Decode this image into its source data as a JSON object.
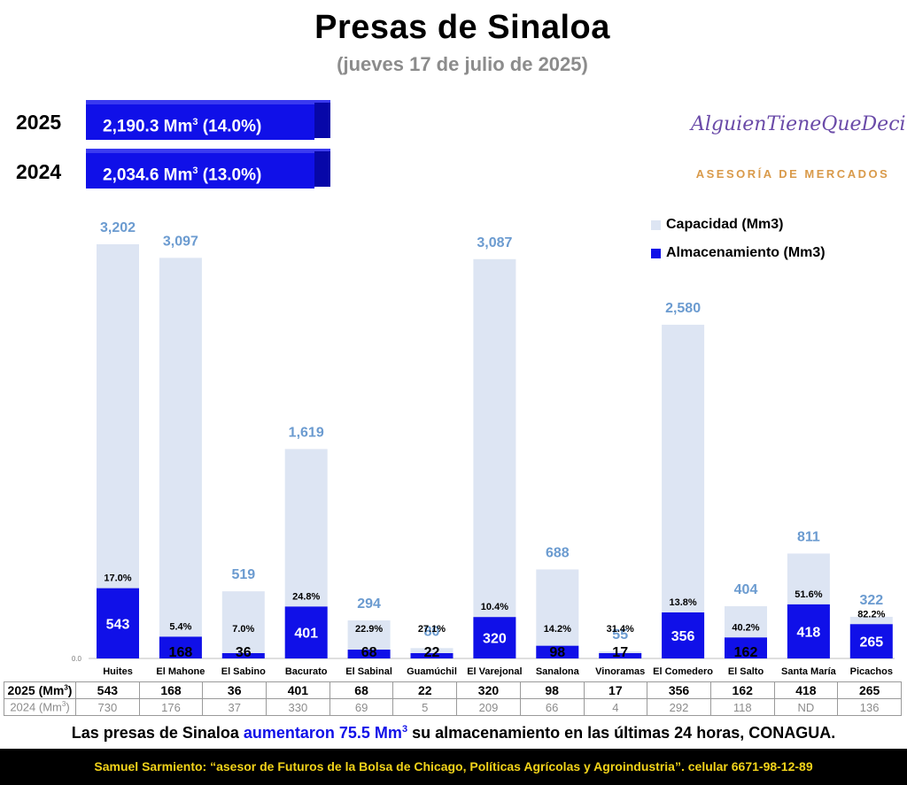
{
  "title": "Presas de Sinaloa",
  "subtitle": "(jueves 17 de julio de 2025)",
  "summary": [
    {
      "year": "2025",
      "value_prefix": "2,190.3 Mm",
      "value_sup": "3",
      "value_suffix": " (14.0%)"
    },
    {
      "year": "2024",
      "value_prefix": "2,034.6 Mm",
      "value_sup": "3",
      "value_suffix": " (13.0%)"
    }
  ],
  "logo": {
    "script": "AlguienTieneQueDecirlo",
    "tagline": "ASESORÍA DE MERCADOS"
  },
  "legend": {
    "capacidad": "Capacidad (Mm3)",
    "almacenamiento": "Almacenamiento (Mm3)"
  },
  "colors": {
    "capacity": "#dde5f3",
    "storage": "#1010e8",
    "capacity_label": "#6b9bd0"
  },
  "chart_data": {
    "type": "bar",
    "ylim": [
      0,
      3202
    ],
    "y_tick_label": "0.0",
    "categories": [
      "Huites",
      "El Mahone",
      "El Sabino",
      "Bacurato",
      "El Sabinal",
      "Guamúchil",
      "El Varejonal",
      "Sanalona",
      "Vinoramas",
      "El Comedero",
      "El Salto",
      "Santa María",
      "Picachos"
    ],
    "capacity_labels": [
      "3,202",
      "3,097",
      "519",
      "1,619",
      "294",
      "80",
      "3,087",
      "688",
      "55",
      "2,580",
      "404",
      "811",
      "322"
    ],
    "series": [
      {
        "name": "Capacidad (Mm3)",
        "values": [
          3202,
          3097,
          519,
          1619,
          294,
          80,
          3087,
          688,
          55,
          2580,
          404,
          811,
          322
        ]
      },
      {
        "name": "Almacenamiento (Mm3)",
        "values": [
          543,
          168,
          36,
          401,
          68,
          22,
          320,
          98,
          17,
          356,
          162,
          418,
          265
        ]
      }
    ],
    "percent_labels": [
      "17.0%",
      "5.4%",
      "7.0%",
      "24.8%",
      "22.9%",
      "27.1%",
      "10.4%",
      "14.2%",
      "31.4%",
      "13.8%",
      "40.2%",
      "51.6%",
      "82.2%"
    ]
  },
  "table": {
    "row2025": {
      "label_prefix": "2025 (Mm",
      "label_sup": "3",
      "label_suffix": ")",
      "values": [
        "543",
        "168",
        "36",
        "401",
        "68",
        "22",
        "320",
        "98",
        "17",
        "356",
        "162",
        "418",
        "265"
      ]
    },
    "row2024": {
      "label_prefix": "2024 (Mm",
      "label_sup": "3",
      "label_suffix": ")",
      "values": [
        "730",
        "176",
        "37",
        "330",
        "69",
        "5",
        "209",
        "66",
        "4",
        "292",
        "118",
        "ND",
        "136"
      ]
    }
  },
  "footnote": {
    "before": "Las presas de Sinaloa ",
    "highlight": "aumentaron 75.5 Mm",
    "highlight_sup": "3",
    "after": " su almacenamiento en las últimas 24 horas, CONAGUA."
  },
  "footer": {
    "name": "Samuel Sarmiento:",
    "text": " “asesor de Futuros de la Bolsa de Chicago, Políticas Agrícolas y Agroindustria”. celular 6671-98-12-89"
  }
}
